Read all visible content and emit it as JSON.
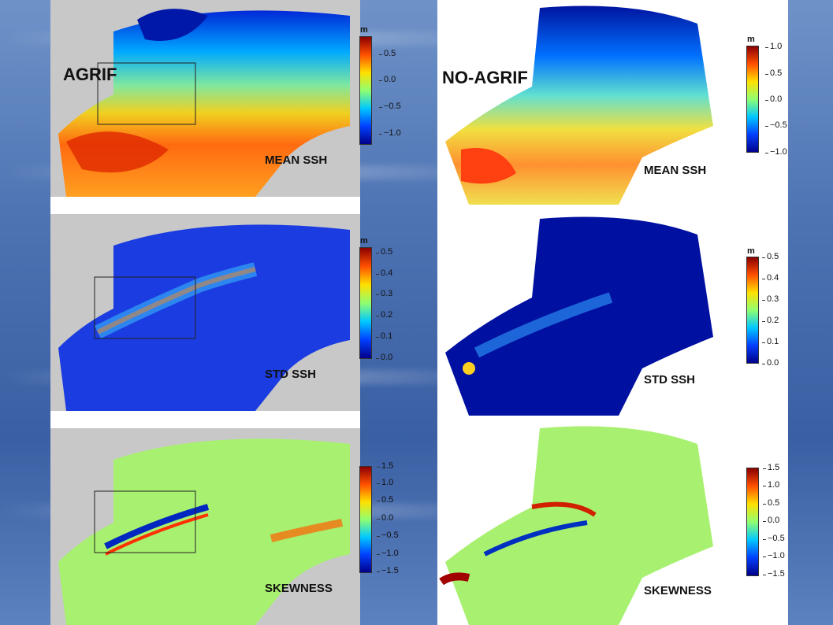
{
  "models": {
    "left": "AGRIF",
    "right": "NO-AGRIF"
  },
  "panels": {
    "mean": {
      "label": "MEAN SSH",
      "unit": "m",
      "ticks_left": [
        "0.5",
        "0.0",
        "−0.5",
        "−1.0"
      ],
      "ticks_right": [
        "1.0",
        "0.5",
        "0.0",
        "−0.5",
        "−1.0"
      ],
      "colormap": [
        "#00008a",
        "#0040ff",
        "#00c8ff",
        "#90ff70",
        "#ffe000",
        "#ff5000",
        "#8a0000"
      ]
    },
    "std": {
      "label": "STD SSH",
      "unit": "m",
      "ticks": [
        "0.5",
        "0.4",
        "0.3",
        "0.2",
        "0.1",
        "0.0"
      ],
      "colormap": [
        "#00008a",
        "#0040ff",
        "#00c8ff",
        "#90ff70",
        "#ffe000",
        "#ff5000",
        "#8a0000"
      ]
    },
    "skew": {
      "label": "SKEWNESS",
      "ticks": [
        "1.5",
        "1.0",
        "0.5",
        "0.0",
        "−0.5",
        "−1.0",
        "−1.5"
      ],
      "colormap": [
        "#00008a",
        "#0040ff",
        "#00c8ff",
        "#90ff70",
        "#ffe000",
        "#ff5000",
        "#8a0000"
      ]
    }
  }
}
